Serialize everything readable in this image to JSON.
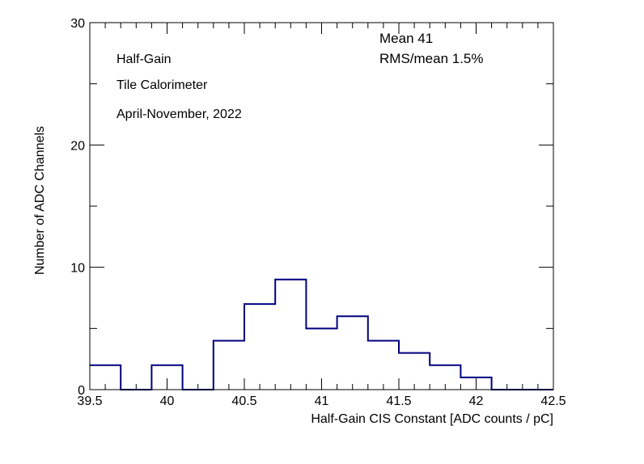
{
  "chart_data": {
    "type": "histogram",
    "xlabel": "Half-Gain CIS Constant [ADC counts / pC]",
    "ylabel": "Number of ADC Channels",
    "xlim": [
      39.5,
      42.5
    ],
    "ylim": [
      0,
      30
    ],
    "x_ticks": [
      "39.5",
      "40",
      "40.5",
      "41",
      "41.5",
      "42",
      "42.5"
    ],
    "y_ticks": [
      "0",
      "10",
      "20",
      "30"
    ],
    "bin_width": 0.2,
    "bins": [
      {
        "lo": 39.5,
        "hi": 39.7,
        "count": 2
      },
      {
        "lo": 39.7,
        "hi": 39.9,
        "count": 0
      },
      {
        "lo": 39.9,
        "hi": 40.1,
        "count": 2
      },
      {
        "lo": 40.1,
        "hi": 40.3,
        "count": 0
      },
      {
        "lo": 40.3,
        "hi": 40.5,
        "count": 4
      },
      {
        "lo": 40.5,
        "hi": 40.7,
        "count": 7
      },
      {
        "lo": 40.7,
        "hi": 40.9,
        "count": 9
      },
      {
        "lo": 40.9,
        "hi": 41.1,
        "count": 5
      },
      {
        "lo": 41.1,
        "hi": 41.3,
        "count": 6
      },
      {
        "lo": 41.3,
        "hi": 41.5,
        "count": 4
      },
      {
        "lo": 41.5,
        "hi": 41.7,
        "count": 3
      },
      {
        "lo": 41.7,
        "hi": 41.9,
        "count": 2
      },
      {
        "lo": 41.9,
        "hi": 42.1,
        "count": 1
      },
      {
        "lo": 42.1,
        "hi": 42.3,
        "count": 0
      },
      {
        "lo": 42.3,
        "hi": 42.5,
        "count": 0
      }
    ],
    "line_color": "#000080",
    "annotations": {
      "gain": "Half-Gain",
      "detector": "Tile Calorimeter",
      "period": "April-November, 2022",
      "mean": "Mean  41",
      "rms": "RMS/mean  1.5%"
    }
  }
}
